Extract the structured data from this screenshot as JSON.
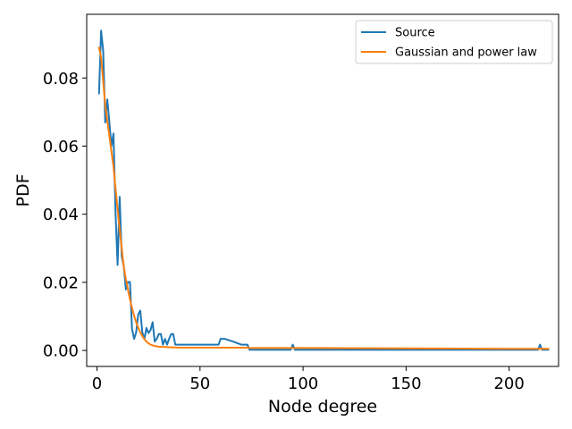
{
  "chart_data": {
    "type": "line",
    "title": "",
    "xlabel": "Node degree",
    "ylabel": "PDF",
    "xlim": [
      -5,
      224
    ],
    "ylim": [
      -0.0047,
      0.0987
    ],
    "xticks": [
      0,
      50,
      100,
      150,
      200
    ],
    "xtick_labels": [
      "0",
      "50",
      "100",
      "150",
      "200"
    ],
    "yticks": [
      0.0,
      0.02,
      0.04,
      0.06,
      0.08
    ],
    "ytick_labels": [
      "0.00",
      "0.02",
      "0.04",
      "0.06",
      "0.08"
    ],
    "grid": false,
    "legend_position": "top-right",
    "series": [
      {
        "name": "Source",
        "color": "#1f77b4",
        "x": [
          1,
          2,
          3,
          4,
          5,
          6,
          7,
          8,
          9,
          10,
          11,
          12,
          13,
          14,
          15,
          16,
          17,
          18,
          19,
          20,
          21,
          22,
          23,
          24,
          25,
          26,
          27,
          28,
          29,
          30,
          31,
          32,
          33,
          34,
          35,
          36,
          37,
          38,
          39,
          40,
          41,
          42,
          43,
          44,
          59,
          60,
          62,
          66,
          70,
          73,
          74,
          75,
          94,
          95,
          96,
          100,
          150,
          200,
          214,
          215,
          216,
          217,
          218,
          219
        ],
        "y": [
          0.0755,
          0.0939,
          0.088,
          0.0669,
          0.0737,
          0.067,
          0.06,
          0.0637,
          0.0403,
          0.0251,
          0.0451,
          0.0276,
          0.0247,
          0.0179,
          0.0201,
          0.0201,
          0.0063,
          0.0034,
          0.0053,
          0.0106,
          0.0117,
          0.0053,
          0.0034,
          0.0066,
          0.0051,
          0.006,
          0.0083,
          0.0026,
          0.0034,
          0.0048,
          0.0048,
          0.0017,
          0.0034,
          0.0017,
          0.0034,
          0.0048,
          0.0048,
          0.0017,
          0.0017,
          0.0017,
          0.0017,
          0.0017,
          0.0017,
          0.0017,
          0.0017,
          0.0034,
          0.0034,
          0.0026,
          0.0017,
          0.0017,
          0.0002,
          0.0002,
          0.0002,
          0.0017,
          0.0002,
          0.0002,
          0.0002,
          0.0002,
          0.0002,
          0.0017,
          0.0002,
          0.0002,
          0.0002,
          0.0002
        ]
      },
      {
        "name": "Gaussian and power law",
        "color": "#ff7f0e",
        "x": [
          1,
          2,
          3,
          4,
          5,
          6,
          7,
          8,
          9,
          10,
          11,
          12,
          13,
          14,
          15,
          16,
          17,
          18,
          19,
          20,
          21,
          22,
          23,
          24,
          25,
          26,
          28,
          30,
          33,
          36,
          40,
          45,
          50,
          60,
          73,
          74,
          100,
          150,
          200,
          219
        ],
        "y": [
          0.0889,
          0.086,
          0.079,
          0.072,
          0.0675,
          0.063,
          0.0585,
          0.054,
          0.0475,
          0.0415,
          0.0355,
          0.03,
          0.0245,
          0.021,
          0.018,
          0.015,
          0.0125,
          0.0102,
          0.0083,
          0.0067,
          0.0053,
          0.0042,
          0.0033,
          0.0026,
          0.0021,
          0.0017,
          0.0013,
          0.0011,
          0.001,
          0.0009,
          0.0008,
          0.0008,
          0.0008,
          0.0008,
          0.0008,
          0.0007,
          0.0007,
          0.0006,
          0.0005,
          0.0005
        ]
      }
    ]
  }
}
